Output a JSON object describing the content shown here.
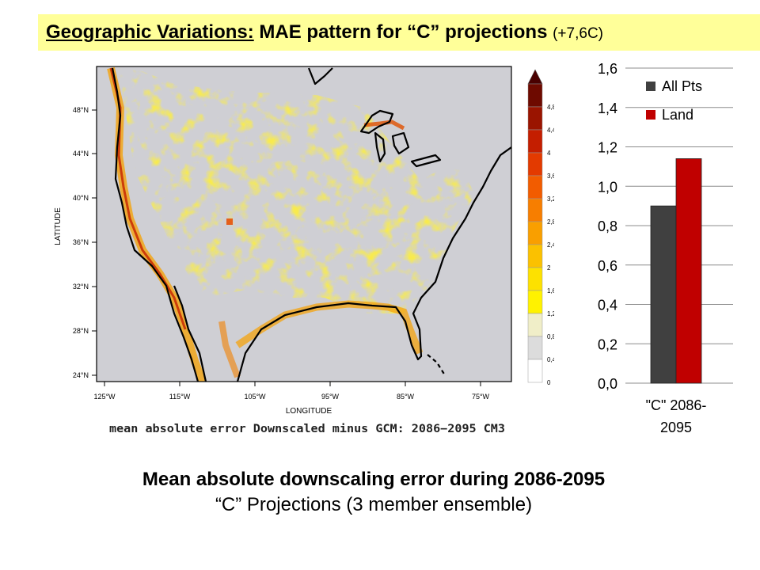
{
  "slide": {
    "title_prefix": "Geographic Variations:",
    "title_main": "MAE pattern for “C” projections",
    "title_note": "(+7,6C)",
    "caption_line1": "Mean absolute downscaling error during 2086-2095",
    "caption_line2": "“C” Projections (3 member ensemble)"
  },
  "map": {
    "title": "mean absolute error Downscaled minus GCM: 2086−2095 CM3",
    "xlabel": "LONGITUDE",
    "ylabel": "LATITUDE",
    "lon_ticks": [
      "125°W",
      "115°W",
      "105°W",
      "95°W",
      "85°W",
      "75°W"
    ],
    "lat_ticks": [
      "48°N",
      "44°N",
      "40°N",
      "36°N",
      "32°N",
      "28°N",
      "24°N"
    ],
    "colorbar_levels": [
      "4,8",
      "4,4",
      "4",
      "3,6",
      "3,2",
      "2,8",
      "2,4",
      "2",
      "1,6",
      "1,2",
      "0,8",
      "0,4",
      "0"
    ],
    "colorbar_colors": [
      "#4a0000",
      "#6e0a00",
      "#9a1400",
      "#c41e00",
      "#e33a00",
      "#f25c00",
      "#f77e00",
      "#f99f00",
      "#fbc100",
      "#fde100",
      "#fff200",
      "#f0eec8",
      "#dcdcdc",
      "#ffffff"
    ]
  },
  "chart_data": {
    "type": "bar",
    "categories": [
      "\"C\" 2086-2095"
    ],
    "category_label_lines": [
      "\"C\" 2086-",
      "2095"
    ],
    "series": [
      {
        "name": "All Pts",
        "values": [
          0.9
        ],
        "color": "#404040"
      },
      {
        "name": "Land",
        "values": [
          1.14
        ],
        "color": "#c00000"
      }
    ],
    "ylim": [
      0,
      1.6
    ],
    "yticks": [
      "0,0",
      "0,2",
      "0,4",
      "0,6",
      "0,8",
      "1,0",
      "1,2",
      "1,4",
      "1,6"
    ],
    "grid": true,
    "legend_position": "top-left"
  }
}
